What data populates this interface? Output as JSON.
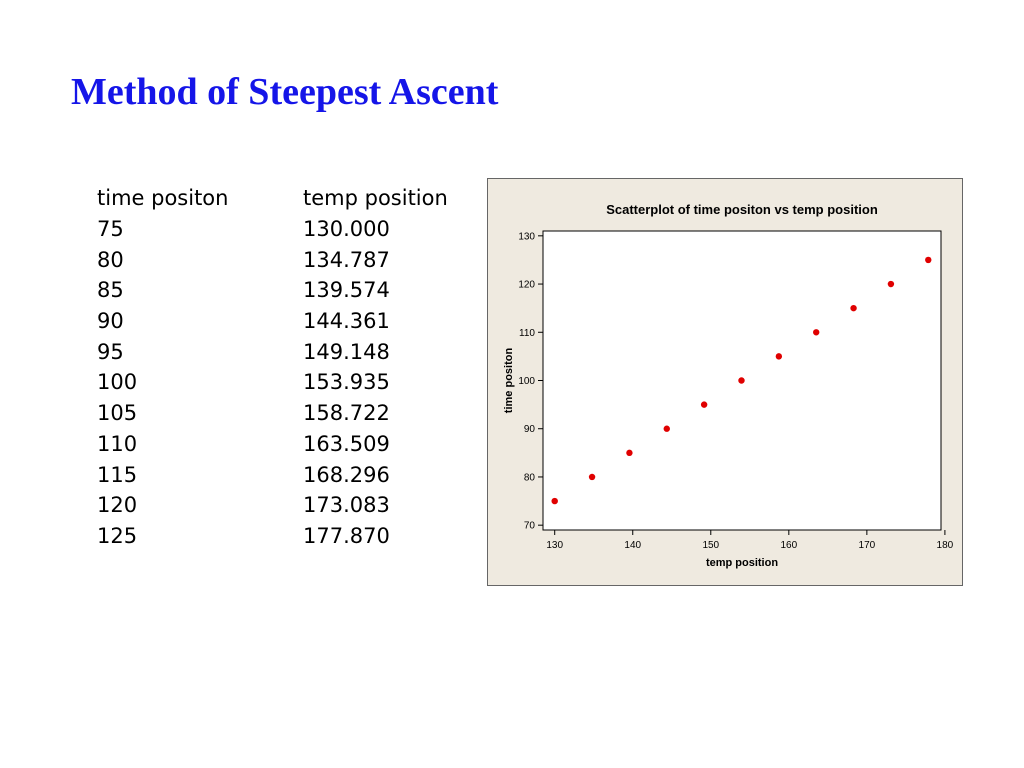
{
  "slide": {
    "title": "Method of Steepest Ascent"
  },
  "table": {
    "headers": [
      "time positon",
      "temp position"
    ],
    "rows": [
      [
        "75",
        "130.000"
      ],
      [
        "80",
        "134.787"
      ],
      [
        "85",
        "139.574"
      ],
      [
        "90",
        "144.361"
      ],
      [
        "95",
        "149.148"
      ],
      [
        "100",
        "153.935"
      ],
      [
        "105",
        "158.722"
      ],
      [
        "110",
        "163.509"
      ],
      [
        "115",
        "168.296"
      ],
      [
        "120",
        "173.083"
      ],
      [
        "125",
        "177.870"
      ]
    ]
  },
  "chart_data": {
    "type": "scatter",
    "title": "Scatterplot of time positon vs temp position",
    "xlabel": "temp position",
    "ylabel": "time positon",
    "xlim": [
      128.5,
      179.5
    ],
    "ylim": [
      69,
      131
    ],
    "xticks": [
      130,
      140,
      150,
      160,
      170,
      180
    ],
    "yticks": [
      70,
      80,
      90,
      100,
      110,
      120,
      130
    ],
    "grid": false,
    "marker_color": "#e00000",
    "panel_background": "#efeae0",
    "plot_background": "#ffffff",
    "points": [
      {
        "x": 130.0,
        "y": 75
      },
      {
        "x": 134.787,
        "y": 80
      },
      {
        "x": 139.574,
        "y": 85
      },
      {
        "x": 144.361,
        "y": 90
      },
      {
        "x": 149.148,
        "y": 95
      },
      {
        "x": 153.935,
        "y": 100
      },
      {
        "x": 158.722,
        "y": 105
      },
      {
        "x": 163.509,
        "y": 110
      },
      {
        "x": 168.296,
        "y": 115
      },
      {
        "x": 173.083,
        "y": 120
      },
      {
        "x": 177.87,
        "y": 125
      }
    ]
  }
}
